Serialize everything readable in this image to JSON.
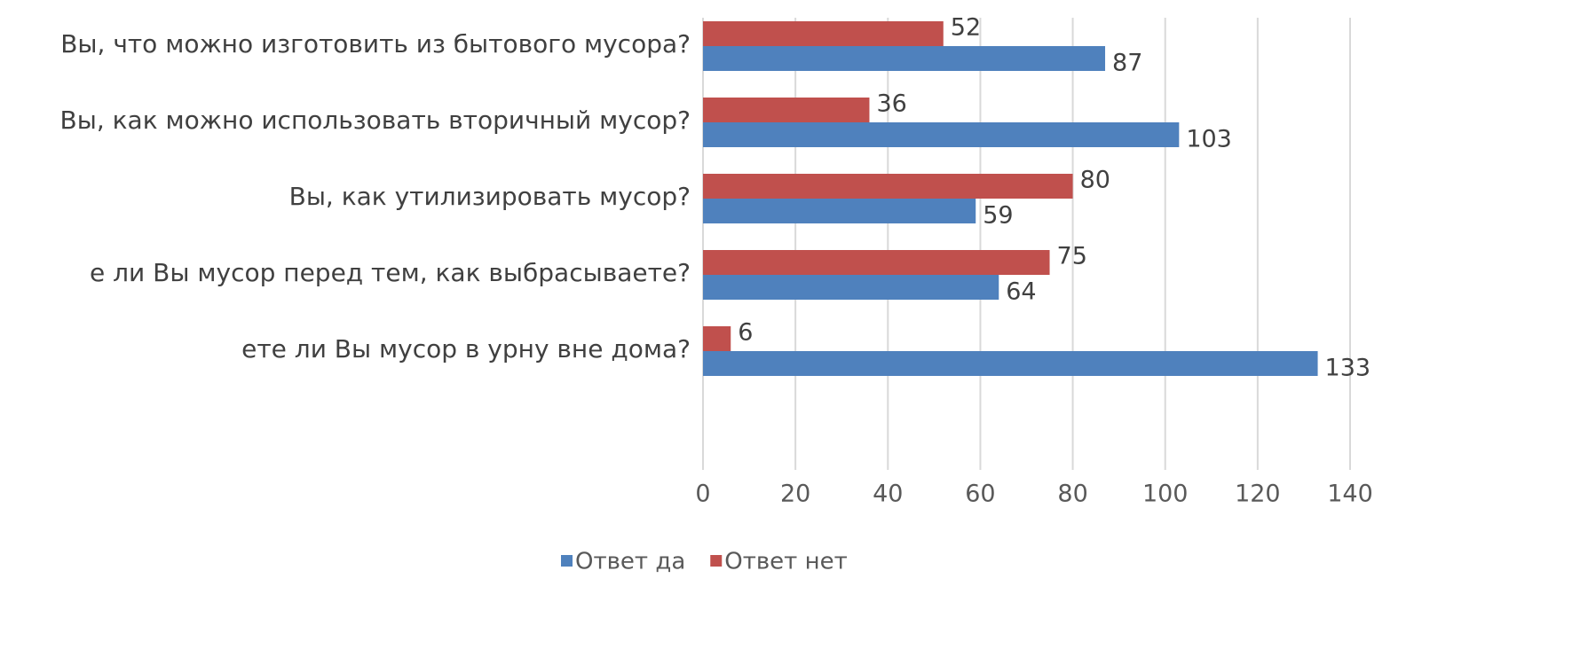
{
  "chart_data": {
    "type": "hbar",
    "categories": [
      "Вы, что можно изготовить из бытового мусора?",
      "Вы, как можно использовать вторичный мусор?",
      "Вы, как утилизировать мусор?",
      "е ли Вы мусор перед тем, как выбрасываете?",
      "ете ли Вы мусор в урну вне дома?"
    ],
    "series": [
      {
        "name": "Ответ да",
        "color": "#4f81bd",
        "values": [
          87,
          103,
          59,
          64,
          133
        ]
      },
      {
        "name": "Ответ нет",
        "color": "#c0504d",
        "values": [
          52,
          36,
          80,
          75,
          6
        ]
      }
    ],
    "xlim": [
      0,
      140
    ],
    "xticks": [
      0,
      20,
      40,
      60,
      80,
      100,
      120,
      140
    ],
    "grid": true,
    "legend": "bottom"
  }
}
